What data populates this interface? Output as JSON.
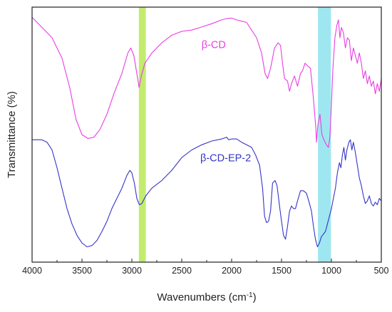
{
  "chart_data": {
    "type": "line",
    "xlabel": "Wavenumbers (cm",
    "xlabel_sup": "-1",
    "xlabel_close": ")",
    "ylabel": "Transmittance (%)",
    "xlim": [
      4000,
      500
    ],
    "ylim": [
      0,
      100
    ],
    "x_ticks": [
      4000,
      3500,
      3000,
      2500,
      2000,
      1500,
      1000,
      500
    ],
    "x_tick_labels": [
      "4000",
      "3500",
      "3000",
      "2500",
      "2000",
      "1500",
      "1000",
      "500"
    ],
    "y_ticks_labeled": false,
    "grid": false,
    "highlight_bands": [
      {
        "from": 2930,
        "to": 2860,
        "color": "#c3ec6e"
      },
      {
        "from": 1135,
        "to": 1005,
        "color": "#9fe7f0"
      }
    ],
    "series": [
      {
        "name": "β-CD",
        "color": "#e93ee3",
        "points": [
          [
            4000,
            96
          ],
          [
            3900,
            92
          ],
          [
            3800,
            88
          ],
          [
            3700,
            80
          ],
          [
            3620,
            68
          ],
          [
            3560,
            56
          ],
          [
            3500,
            50
          ],
          [
            3440,
            48.5
          ],
          [
            3380,
            49
          ],
          [
            3320,
            52
          ],
          [
            3250,
            58
          ],
          [
            3180,
            66
          ],
          [
            3100,
            74
          ],
          [
            3040,
            82
          ],
          [
            3010,
            84
          ],
          [
            2980,
            81
          ],
          [
            2950,
            74
          ],
          [
            2928,
            68.5
          ],
          [
            2905,
            73
          ],
          [
            2870,
            78
          ],
          [
            2800,
            82
          ],
          [
            2700,
            86
          ],
          [
            2600,
            89
          ],
          [
            2500,
            90.5
          ],
          [
            2400,
            91
          ],
          [
            2300,
            92.2
          ],
          [
            2200,
            93.5
          ],
          [
            2100,
            95
          ],
          [
            2050,
            95.5
          ],
          [
            2000,
            95.7
          ],
          [
            1950,
            95
          ],
          [
            1900,
            94.5
          ],
          [
            1850,
            94
          ],
          [
            1800,
            91
          ],
          [
            1750,
            88
          ],
          [
            1700,
            82
          ],
          [
            1665,
            74
          ],
          [
            1640,
            72
          ],
          [
            1610,
            76
          ],
          [
            1570,
            84
          ],
          [
            1535,
            86
          ],
          [
            1510,
            85
          ],
          [
            1490,
            78
          ],
          [
            1470,
            72
          ],
          [
            1440,
            71
          ],
          [
            1420,
            67
          ],
          [
            1400,
            70
          ],
          [
            1370,
            73
          ],
          [
            1340,
            69
          ],
          [
            1310,
            74
          ],
          [
            1290,
            75
          ],
          [
            1265,
            78
          ],
          [
            1240,
            77
          ],
          [
            1210,
            76
          ],
          [
            1180,
            64
          ],
          [
            1155,
            52
          ],
          [
            1150,
            47
          ],
          [
            1135,
            54
          ],
          [
            1115,
            58
          ],
          [
            1095,
            50
          ],
          [
            1075,
            48
          ],
          [
            1050,
            46
          ],
          [
            1030,
            45
          ],
          [
            1015,
            49
          ],
          [
            1000,
            62
          ],
          [
            985,
            76
          ],
          [
            965,
            88
          ],
          [
            945,
            93
          ],
          [
            930,
            95
          ],
          [
            915,
            88
          ],
          [
            900,
            92
          ],
          [
            880,
            90
          ],
          [
            860,
            84
          ],
          [
            840,
            88
          ],
          [
            820,
            87
          ],
          [
            800,
            79
          ],
          [
            780,
            84
          ],
          [
            760,
            81
          ],
          [
            740,
            78
          ],
          [
            720,
            82
          ],
          [
            700,
            78
          ],
          [
            680,
            72
          ],
          [
            660,
            75
          ],
          [
            640,
            70
          ],
          [
            620,
            73
          ],
          [
            600,
            69
          ],
          [
            580,
            71
          ],
          [
            560,
            66
          ],
          [
            540,
            70
          ],
          [
            520,
            67
          ],
          [
            500,
            72
          ]
        ]
      },
      {
        "name": "β-CD-EP-2",
        "color": "#3535c8",
        "points": [
          [
            4000,
            48
          ],
          [
            3900,
            48
          ],
          [
            3850,
            47
          ],
          [
            3800,
            44
          ],
          [
            3750,
            37
          ],
          [
            3700,
            29
          ],
          [
            3650,
            21
          ],
          [
            3600,
            15
          ],
          [
            3550,
            10.5
          ],
          [
            3500,
            7.5
          ],
          [
            3450,
            6
          ],
          [
            3400,
            6.5
          ],
          [
            3350,
            8.5
          ],
          [
            3300,
            12
          ],
          [
            3250,
            16
          ],
          [
            3200,
            21
          ],
          [
            3150,
            25
          ],
          [
            3100,
            29
          ],
          [
            3050,
            34
          ],
          [
            3020,
            36
          ],
          [
            3000,
            35
          ],
          [
            2975,
            31
          ],
          [
            2950,
            25
          ],
          [
            2925,
            22.5
          ],
          [
            2900,
            23
          ],
          [
            2860,
            26
          ],
          [
            2800,
            29
          ],
          [
            2700,
            32
          ],
          [
            2600,
            36
          ],
          [
            2500,
            41
          ],
          [
            2400,
            44
          ],
          [
            2300,
            46
          ],
          [
            2200,
            47.5
          ],
          [
            2100,
            48.3
          ],
          [
            2050,
            49
          ],
          [
            2030,
            48
          ],
          [
            2000,
            48.3
          ],
          [
            1950,
            48.3
          ],
          [
            1900,
            47
          ],
          [
            1850,
            46
          ],
          [
            1800,
            45
          ],
          [
            1760,
            42
          ],
          [
            1720,
            38
          ],
          [
            1690,
            29
          ],
          [
            1670,
            18
          ],
          [
            1650,
            15.5
          ],
          [
            1630,
            16
          ],
          [
            1610,
            20
          ],
          [
            1590,
            31
          ],
          [
            1565,
            32
          ],
          [
            1545,
            30
          ],
          [
            1520,
            22
          ],
          [
            1500,
            16
          ],
          [
            1480,
            10.5
          ],
          [
            1460,
            9
          ],
          [
            1440,
            14
          ],
          [
            1420,
            20
          ],
          [
            1400,
            22
          ],
          [
            1380,
            21
          ],
          [
            1360,
            21
          ],
          [
            1340,
            24
          ],
          [
            1310,
            28
          ],
          [
            1280,
            28
          ],
          [
            1250,
            27
          ],
          [
            1220,
            23
          ],
          [
            1200,
            20
          ],
          [
            1180,
            14
          ],
          [
            1160,
            9
          ],
          [
            1140,
            6
          ],
          [
            1120,
            7.5
          ],
          [
            1100,
            10
          ],
          [
            1080,
            11
          ],
          [
            1060,
            12
          ],
          [
            1040,
            15
          ],
          [
            1020,
            18
          ],
          [
            1000,
            21
          ],
          [
            980,
            25
          ],
          [
            960,
            29
          ],
          [
            940,
            35
          ],
          [
            920,
            39
          ],
          [
            905,
            37
          ],
          [
            890,
            42
          ],
          [
            875,
            45
          ],
          [
            860,
            40
          ],
          [
            845,
            44
          ],
          [
            825,
            47
          ],
          [
            810,
            48
          ],
          [
            795,
            44
          ],
          [
            780,
            47
          ],
          [
            760,
            43
          ],
          [
            740,
            38
          ],
          [
            720,
            33
          ],
          [
            700,
            30
          ],
          [
            680,
            26
          ],
          [
            660,
            23
          ],
          [
            640,
            24
          ],
          [
            620,
            26
          ],
          [
            600,
            23
          ],
          [
            580,
            22
          ],
          [
            560,
            23.5
          ],
          [
            540,
            22.5
          ],
          [
            520,
            25
          ],
          [
            500,
            24
          ]
        ]
      }
    ],
    "annotations": [
      {
        "text": "β-CD",
        "color": "#e93ee3",
        "x": 2180,
        "y": 84
      },
      {
        "text": "β-CD-EP-2",
        "color": "#3535c8",
        "x": 2060,
        "y": 39.5
      }
    ]
  }
}
